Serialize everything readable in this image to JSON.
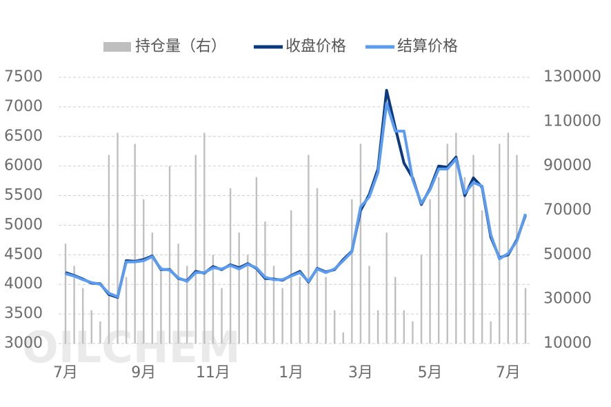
{
  "chart_data": {
    "type": "combo",
    "watermark": "OILCHEM",
    "categories": [
      "7月",
      null,
      null,
      null,
      null,
      null,
      null,
      null,
      null,
      "9月",
      null,
      null,
      null,
      null,
      null,
      null,
      null,
      "11月",
      null,
      null,
      null,
      null,
      null,
      null,
      null,
      null,
      "1月",
      null,
      null,
      null,
      null,
      null,
      null,
      null,
      "3月",
      null,
      null,
      null,
      null,
      null,
      null,
      null,
      "5月",
      null,
      null,
      null,
      null,
      null,
      null,
      null,
      null,
      "7月",
      null,
      null
    ],
    "ylim": [
      3000,
      7500
    ],
    "yticks": [
      3000,
      3500,
      4000,
      4500,
      5000,
      5500,
      6000,
      6500,
      7000,
      7500
    ],
    "y2lim": [
      10000,
      130000
    ],
    "y2ticks": [
      10000,
      30000,
      50000,
      70000,
      90000,
      110000,
      130000
    ],
    "grid": true,
    "series": [
      {
        "name": "持仓量（右）",
        "type": "bar",
        "axis": "y2",
        "color": "#bfbfbf",
        "values": [
          55000,
          45000,
          35000,
          25000,
          20000,
          95000,
          105000,
          40000,
          100000,
          75000,
          60000,
          45000,
          90000,
          55000,
          45000,
          95000,
          105000,
          50000,
          35000,
          80000,
          60000,
          50000,
          85000,
          65000,
          45000,
          35000,
          70000,
          40000,
          95000,
          80000,
          40000,
          25000,
          15000,
          75000,
          100000,
          45000,
          25000,
          60000,
          40000,
          25000,
          20000,
          50000,
          75000,
          85000,
          100000,
          105000,
          85000,
          95000,
          70000,
          20000,
          100000,
          105000,
          95000,
          35000
        ]
      },
      {
        "name": "收盘价格",
        "type": "line",
        "color": "#0b3a7e",
        "values": [
          4200,
          4150,
          4090,
          4020,
          4010,
          3830,
          3780,
          4400,
          4390,
          4420,
          4480,
          4250,
          4250,
          4100,
          4060,
          4220,
          4190,
          4300,
          4250,
          4330,
          4280,
          4350,
          4270,
          4100,
          4090,
          4070,
          4150,
          4220,
          4040,
          4270,
          4210,
          4250,
          4420,
          4560,
          5250,
          5520,
          5950,
          7280,
          6650,
          6050,
          5800,
          5350,
          5620,
          6000,
          5980,
          6150,
          5500,
          5800,
          5640,
          4800,
          4450,
          4500,
          4750,
          5170
        ]
      },
      {
        "name": "结算价格",
        "type": "line",
        "color": "#5b9bf0",
        "values": [
          4180,
          4140,
          4080,
          4030,
          4000,
          3850,
          3790,
          4380,
          4380,
          4400,
          4470,
          4260,
          4240,
          4110,
          4050,
          4200,
          4200,
          4280,
          4260,
          4320,
          4260,
          4340,
          4280,
          4120,
          4080,
          4080,
          4140,
          4200,
          4050,
          4260,
          4200,
          4260,
          4400,
          4550,
          5310,
          5480,
          5890,
          7060,
          6590,
          6590,
          5770,
          5370,
          5600,
          5950,
          5950,
          6120,
          5540,
          5720,
          5660,
          4840,
          4430,
          4520,
          4730,
          5190
        ]
      }
    ]
  }
}
